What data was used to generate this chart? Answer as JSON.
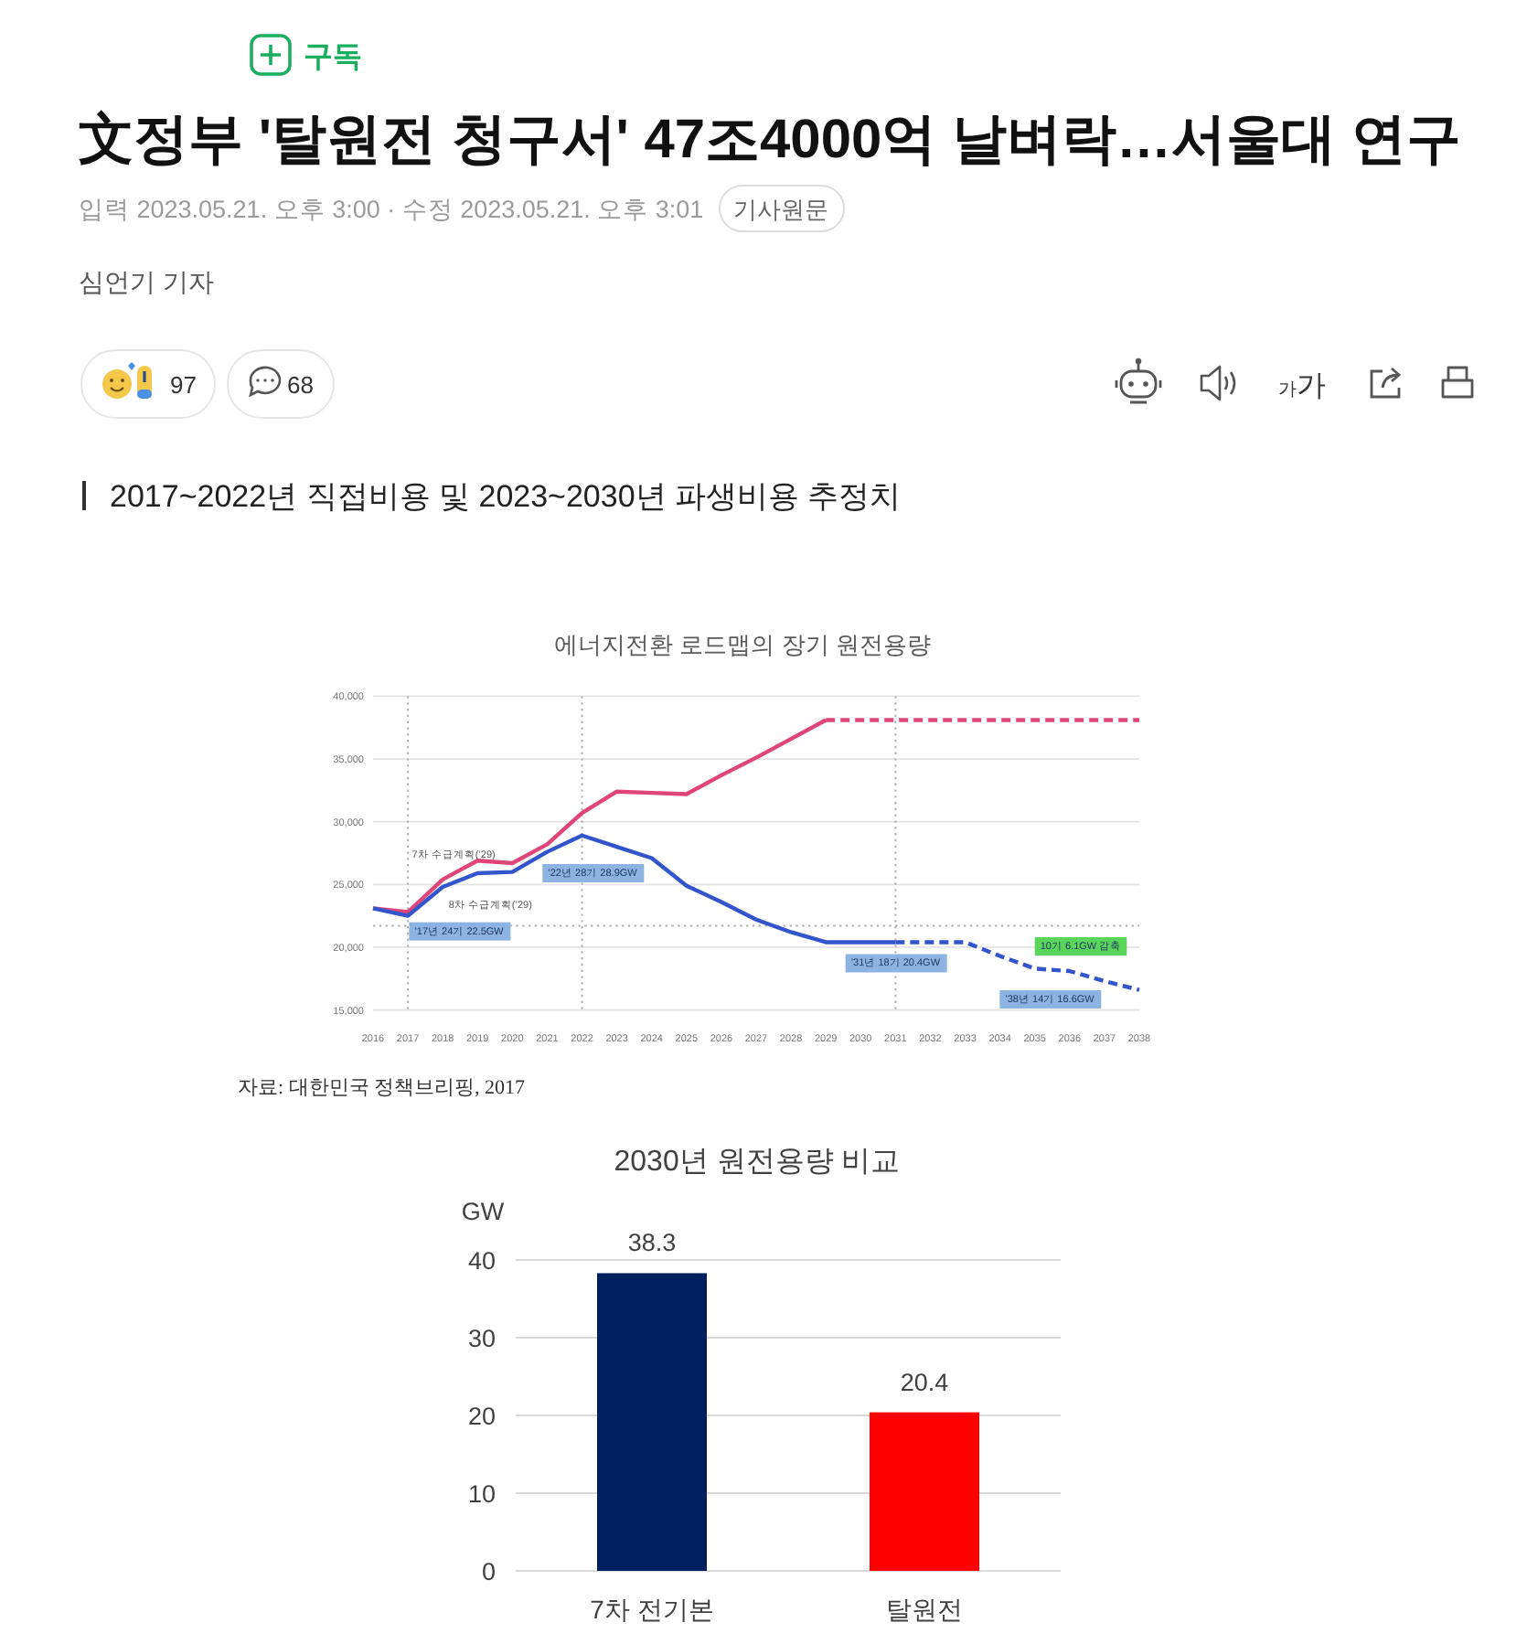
{
  "chart_data": [
    {
      "type": "other",
      "title": "文정부 '탈원전 청구서' 47조4000억 날벼락…서울대 연구",
      "annotations": [
        "구독",
        "입력 2023.05.21. 오후 3:00 · 수정 2023.05.21. 오후 3:01",
        "기사원문",
        "심언기 기자",
        "97",
        "68",
        "가가",
        "2017~2022년 직접비용 및 2023~2030년 파생비용 추정치"
      ]
    },
    {
      "type": "line",
      "title": "에너지전환 로드맵의 장기 원전용량",
      "xlim": [
        2016,
        2038
      ],
      "xticks": [
        2016,
        2017,
        2018,
        2019,
        2020,
        2021,
        2022,
        2023,
        2024,
        2025,
        2026,
        2027,
        2028,
        2029,
        2030,
        2031,
        2032,
        2033,
        2034,
        2035,
        2036,
        2037,
        2038
      ],
      "ylim": [
        15000,
        40000
      ],
      "yticks": [
        {
          "value": 15000,
          "label": "15,000"
        },
        {
          "value": 20000,
          "label": "20,000"
        },
        {
          "value": 25000,
          "label": "25,000"
        },
        {
          "value": 30000,
          "label": "30,000"
        },
        {
          "value": 35000,
          "label": "35,000"
        },
        {
          "value": 40000,
          "label": "40,000"
        }
      ],
      "grid": "y",
      "line_style": "solid",
      "series": [
        {
          "name": "7차 수급계획(’29)",
          "color": "#e0457a",
          "x": [
            2016,
            2017,
            2018,
            2019,
            2020,
            2021,
            2022,
            2023,
            2024,
            2025,
            2026,
            2027,
            2028,
            2029
          ],
          "values": [
            23100,
            22800,
            25400,
            26900,
            26700,
            28200,
            30700,
            32400,
            32300,
            32200,
            33700,
            35100,
            36600,
            38100
          ]
        },
        {
          "color": "#e0457a",
          "line_style": "dashed",
          "x": [
            2029,
            2030,
            2031,
            2032,
            2033,
            2034,
            2035,
            2036,
            2037,
            2038
          ],
          "values": [
            38100,
            38100,
            38100,
            38100,
            38100,
            38100,
            38100,
            38100,
            38100,
            38100
          ]
        },
        {
          "name": "8차 수급계획(’29)",
          "color": "#3355cc",
          "x": [
            2016,
            2017,
            2018,
            2019,
            2020,
            2021,
            2022,
            2023,
            2024,
            2025,
            2026,
            2027,
            2028,
            2029,
            2030,
            2031
          ],
          "values": [
            23100,
            22500,
            24800,
            25900,
            26000,
            27600,
            28900,
            28000,
            27100,
            24900,
            23600,
            22200,
            21200,
            20400,
            20400,
            20400
          ]
        },
        {
          "color": "#3355cc",
          "line_style": "dashed",
          "x": [
            2031,
            2032,
            2033,
            2034,
            2035,
            2036,
            2037,
            2038
          ],
          "values": [
            20400,
            20400,
            20400,
            19300,
            18300,
            18100,
            17300,
            16600
          ]
        }
      ],
      "ref_lines": [
        {
          "axis": "x",
          "value": 2017,
          "line_style": "dotted",
          "color": "#b0b0b0"
        },
        {
          "axis": "x",
          "value": 2022,
          "line_style": "dotted",
          "color": "#b0b0b0"
        },
        {
          "axis": "x",
          "value": 2031,
          "line_style": "dotted",
          "color": "#b0b0b0"
        },
        {
          "axis": "y",
          "value": 21700,
          "line_style": "dotted",
          "color": "#b0b0b0"
        }
      ],
      "annotations": [
        {
          "text": "’17년 24기 22.5GW",
          "x": 2017,
          "y": 22500
        },
        "’22년 28기 28.9GW",
        {
          "text": "’31년 18기 20.4GW",
          "x": 2031,
          "y": 20400
        },
        "’38년 14기 16.6GW",
        "10기 6.1GW 감축",
        "자료: 대한민국 정책브리핑, 2017"
      ]
    },
    {
      "type": "bar",
      "title": "2030년 원전용량 비교",
      "ylabel": "GW",
      "categories": [
        "7차 전기본",
        "탈원전"
      ],
      "values": [
        38.3,
        20.4
      ],
      "colors": [
        "#002060",
        "#ff0000"
      ],
      "ylim": [
        0,
        40
      ],
      "yticks": [
        0,
        10,
        20,
        30,
        40
      ],
      "grid": "y",
      "data_labels": true
    }
  ]
}
